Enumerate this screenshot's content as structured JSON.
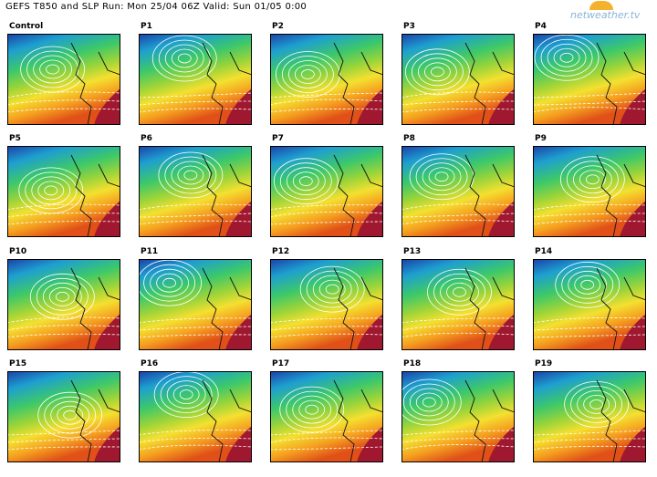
{
  "header": {
    "title": "GEFS T850 and SLP Run: Mon 25/04 06Z Valid: Sun 01/05 0:00",
    "logo": "netweather.tv"
  },
  "panels": [
    "Control",
    "P1",
    "P2",
    "P3",
    "P4",
    "P5",
    "P6",
    "P7",
    "P8",
    "P9",
    "P10",
    "P11",
    "P12",
    "P13",
    "P14",
    "P15",
    "P16",
    "P17",
    "P18",
    "P19"
  ]
}
